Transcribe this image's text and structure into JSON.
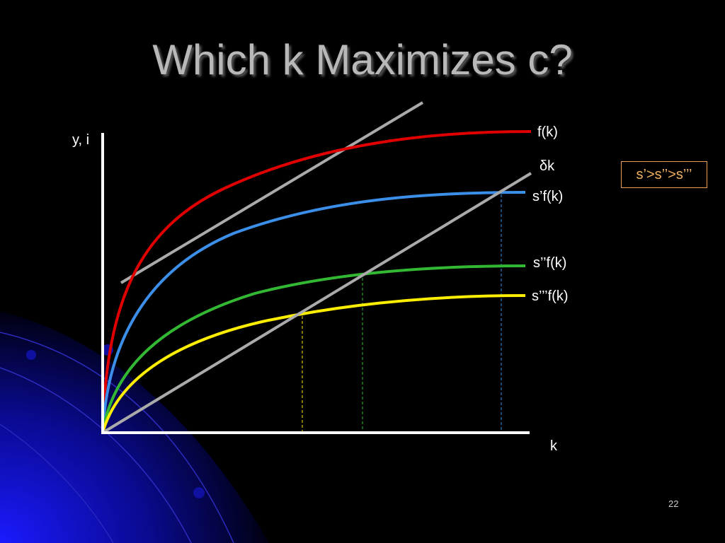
{
  "slide": {
    "title": "Which k Maximizes c?",
    "page_number": "22",
    "legend_box": "s’>s’’>s’’’"
  },
  "diagram": {
    "y_axis_label": "y, i",
    "x_axis_label": "k",
    "curves": [
      {
        "id": "fk",
        "label": "f(k)",
        "color": "#e00000"
      },
      {
        "id": "s1",
        "label": "s’f(k)",
        "color": "#3b8fe8"
      },
      {
        "id": "s2",
        "label": "s’’f(k)",
        "color": "#33b833"
      },
      {
        "id": "s3",
        "label": "s’’’f(k)",
        "color": "#ffee00"
      }
    ],
    "depreciation_label": "δk",
    "tangent_line_color": "#aaaaaa",
    "depreciation_line_color": "#aaaaaa"
  }
}
